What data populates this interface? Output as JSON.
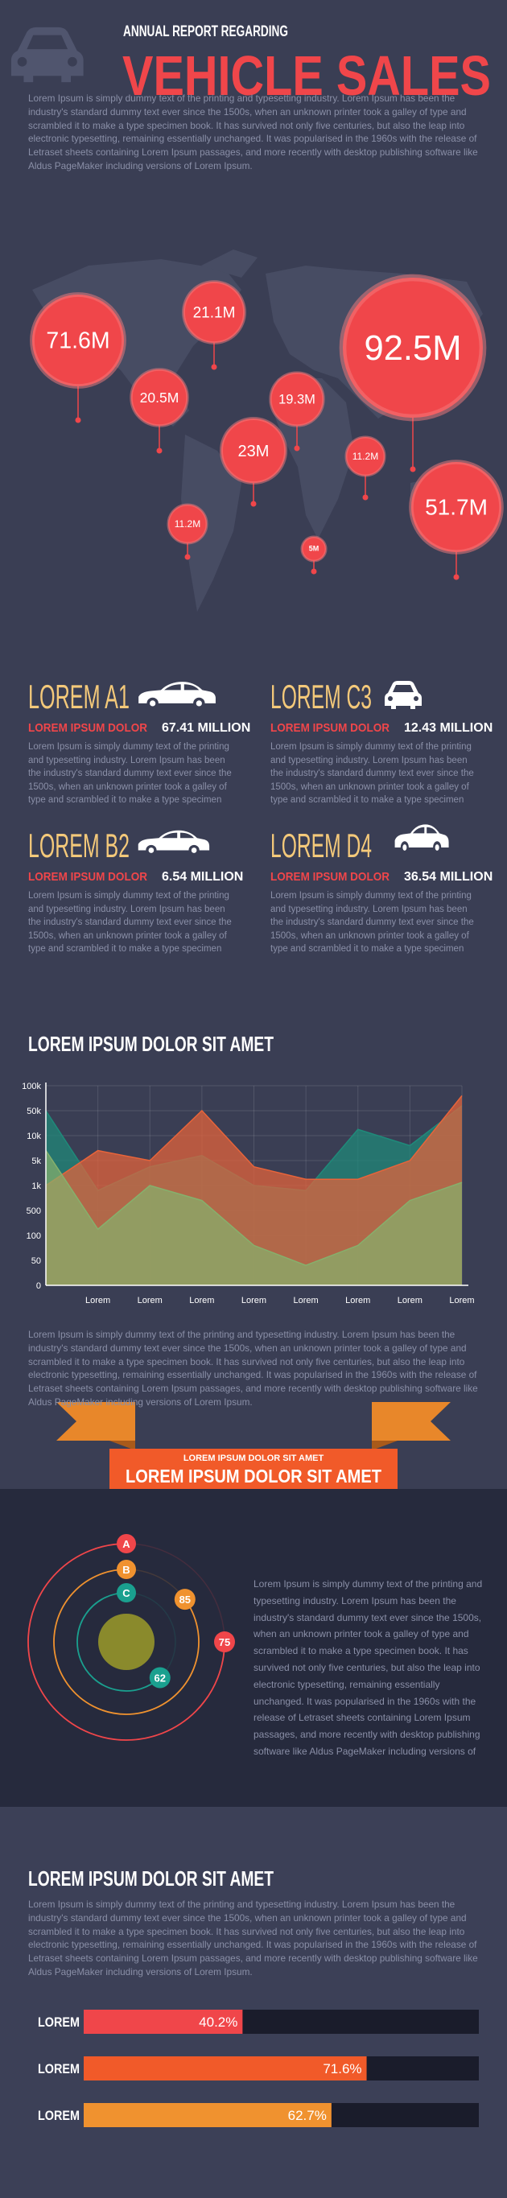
{
  "header": {
    "kicker": "ANNUAL REPORT REGARDING",
    "title": "VEHICLE SALES",
    "text": "Lorem Ipsum is simply dummy text of the printing and typesetting industry. Lorem Ipsum has been the industry's standard dummy text ever since the 1500s, when an unknown printer took a galley of type and scrambled it to make a type specimen book. It has survived not only five centuries, but also the leap into electronic typesetting, remaining essentially unchanged. It was popularised in the 1960s with the release of Letraset sheets containing Lorem Ipsum passages, and more recently with desktop publishing software like Aldus PageMaker including versions of Lorem Ipsum."
  },
  "bubbles": [
    "71.6M",
    "21.1M",
    "20.5M",
    "92.5M",
    "19.3M",
    "23M",
    "11.2M",
    "51.7M",
    "11.2M",
    "5M"
  ],
  "cards": [
    {
      "title": "LOREM A1",
      "label": "LOREM IPSUM DOLOR",
      "value": "67.41 MILLION",
      "text": "Lorem Ipsum is simply dummy text of the printing and typesetting industry. Lorem Ipsum has been the industry's standard dummy text ever since the 1500s, when an unknown printer took a galley of type and scrambled it to make a type specimen book. It has survived not only five centuries, but"
    },
    {
      "title": "LOREM C3",
      "label": "LOREM IPSUM DOLOR",
      "value": "12.43 MILLION",
      "text": "Lorem Ipsum is simply dummy text of the printing and typesetting industry. Lorem Ipsum has been the industry's standard dummy text ever since the 1500s, when an unknown printer took a galley of type and scrambled it to make a type specimen book. It has survived not only five centuries, but"
    },
    {
      "title": "LOREM B2",
      "label": "LOREM IPSUM DOLOR",
      "value": "6.54 MILLION",
      "text": "Lorem Ipsum is simply dummy text of the printing and typesetting industry. Lorem Ipsum has been the industry's standard dummy text ever since the 1500s, when an unknown printer took a galley of type and scrambled it to make a type specimen book. It has survived not only five centuries, but"
    },
    {
      "title": "LOREM D4",
      "label": "LOREM IPSUM DOLOR",
      "value": "36.54 MILLION",
      "text": "Lorem Ipsum is simply dummy text of the printing and typesetting industry. Lorem Ipsum has been the industry's standard dummy text ever since the 1500s, when an unknown printer took a galley of type and scrambled it to make a type specimen book. It has survived not only five centuries, but"
    }
  ],
  "chart_data": [
    {
      "type": "area",
      "title": "LOREM IPSUM DOLOR SIT AMET",
      "categories": [
        null,
        "Lorem",
        "Lorem",
        "Lorem",
        "Lorem",
        "Lorem",
        "Lorem",
        "Lorem",
        "Lorem"
      ],
      "series": [
        {
          "color": "#1f8a7a",
          "values": [
            50000,
            900,
            4000,
            6000,
            1000,
            900,
            20000,
            8000,
            60000
          ]
        },
        {
          "color": "#e8643a",
          "values": [
            1000,
            7000,
            5000,
            50000,
            4000,
            2000,
            2000,
            5000,
            80000
          ]
        },
        {
          "color": "#86b06c",
          "values": [
            7000,
            200,
            1000,
            700,
            80,
            40,
            80,
            700,
            1500
          ]
        }
      ],
      "ylim": [
        0,
        100000
      ],
      "yticks": [
        0,
        50,
        100,
        500,
        {
          "value": 1000,
          "label": "1k"
        },
        {
          "value": 5000,
          "label": "5k"
        },
        {
          "value": 10000,
          "label": "10k"
        },
        {
          "value": 50000,
          "label": "50k"
        },
        {
          "value": 100000,
          "label": "100k"
        }
      ],
      "grid": true
    },
    {
      "type": "radial",
      "series": [
        {
          "name": "A",
          "color": "#f0464a",
          "values": [
            75
          ]
        },
        {
          "name": "B",
          "color": "#f0922f",
          "values": [
            85
          ]
        },
        {
          "name": "C",
          "color": "#1aa08f",
          "values": [
            62
          ]
        }
      ],
      "ylim": [
        0,
        100
      ]
    },
    {
      "type": "hbar",
      "title": "LOREM IPSUM DOLOR SIT AMET",
      "categories": [
        "LOREM",
        "LOREM",
        "LOREM"
      ],
      "values": [
        40.2,
        71.6,
        62.7
      ],
      "value_labels": [
        "40.2%",
        "71.6%",
        "62.7%"
      ],
      "colors": [
        "#f0464a",
        "#f15a29",
        "#f0922f"
      ],
      "xlim": [
        0,
        100
      ]
    }
  ],
  "chart_text": "Lorem Ipsum is simply dummy text of the printing and typesetting industry. Lorem Ipsum has been the industry's standard dummy text ever since the 1500s, when an unknown printer took a galley of type and scrambled it to make a type specimen book. It has survived not only five centuries, but also the leap into electronic typesetting, remaining essentially unchanged. It was popularised in the 1960s with the release of Letraset sheets containing Lorem Ipsum passages, and more recently with desktop publishing software like Aldus PageMaker including versions of Lorem Ipsum.",
  "banner": {
    "small": "LOREM IPSUM DOLOR SIT AMET",
    "large": "LOREM IPSUM DOLOR SIT AMET"
  },
  "orbit_text": "Lorem Ipsum is simply dummy text of the printing and typesetting industry. Lorem Ipsum has been the industry's standard dummy text ever since the 1500s, when an unknown printer took a galley of type and scrambled it to make a type specimen book. It has survived not only five centuries, but also the leap into electronic typesetting, remaining essentially unchanged. It was popularised in the 1960s with the release of Letraset sheets containing Lorem Ipsum passages, and more recently with desktop publishing software like Aldus PageMaker including versions of",
  "bars_text": "Lorem Ipsum is simply dummy text of the printing and typesetting industry. Lorem Ipsum has been the industry's standard dummy text ever since the 1500s, when an unknown printer took a galley of type and scrambled it to make a type specimen book. It has survived not only five centuries, but also the leap into electronic typesetting, remaining essentially unchanged. It was popularised in the 1960s with the release of Letraset sheets containing Lorem Ipsum passages, and more recently with desktop publishing software like Aldus PageMaker including versions of Lorem Ipsum."
}
